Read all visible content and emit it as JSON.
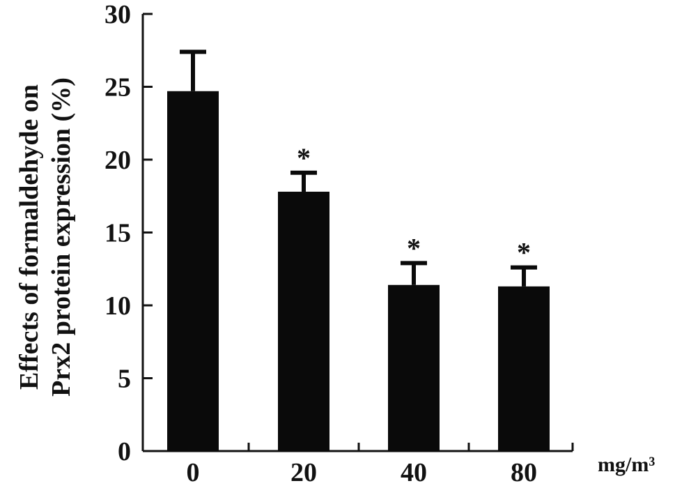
{
  "chart_data": {
    "type": "bar",
    "title": "",
    "ylabel_lines": [
      "Effects of formaldehyde on",
      "Prx2 protein expression (%)"
    ],
    "xlabel": "",
    "x_unit_label": "mg/m³",
    "categories": [
      "0",
      "20",
      "40",
      "80"
    ],
    "series": [
      {
        "values": [
          24.7,
          17.8,
          11.4,
          11.3
        ],
        "error_upper": [
          2.7,
          1.3,
          1.5,
          1.3
        ],
        "significance": [
          "",
          "*",
          "*",
          "*"
        ]
      }
    ],
    "ylim": [
      0,
      30
    ],
    "yticks": [
      0,
      5,
      10,
      15,
      20,
      25,
      30
    ],
    "ytick_labels": [
      "0",
      "5",
      "10",
      "15",
      "20",
      "25",
      "30"
    ],
    "grid": false,
    "legend": "none",
    "bar_color": "#0a0a0a",
    "axis_color": "#111111"
  }
}
